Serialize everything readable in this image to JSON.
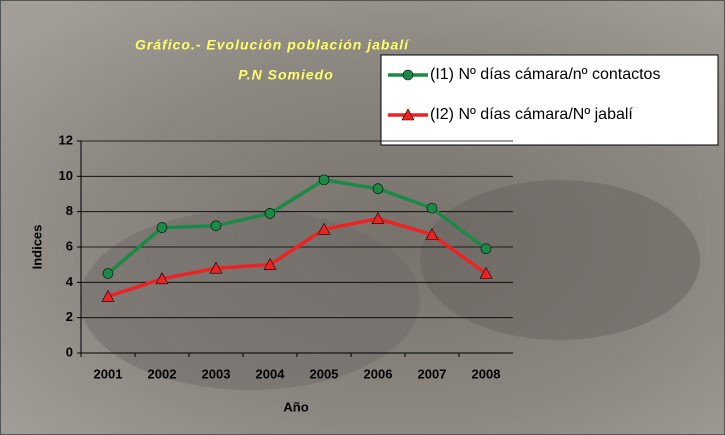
{
  "chart_data": {
    "type": "line",
    "title": "Gráfico.- Evolución población jabalí",
    "subtitle": "P.N Somiedo",
    "x_label": "Año",
    "y_label": "Indices",
    "categories": [
      "2001",
      "2002",
      "2003",
      "2004",
      "2005",
      "2006",
      "2007",
      "2008"
    ],
    "series": [
      {
        "name": "(I1) Nº días cámara/nº contactos",
        "color": "#1a8a46",
        "marker": "circle",
        "values": [
          4.5,
          7.1,
          7.2,
          7.9,
          9.8,
          9.3,
          8.2,
          5.9
        ]
      },
      {
        "name": "(I2) Nº días cámara/Nº jabalí",
        "color": "#ee2222",
        "marker": "triangle",
        "values": [
          3.2,
          4.2,
          4.8,
          5.0,
          7.0,
          7.6,
          6.7,
          4.5
        ]
      }
    ],
    "ylim": [
      0,
      12
    ],
    "yticks": [
      0,
      2,
      4,
      6,
      8,
      10,
      12
    ],
    "grid": true
  }
}
